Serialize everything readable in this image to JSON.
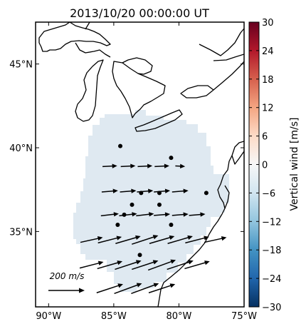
{
  "title": "2013/10/20 00:00:00 UT",
  "lat_ticks": [
    {
      "deg": 45,
      "label": "45°N"
    },
    {
      "deg": 40,
      "label": "40°N"
    },
    {
      "deg": 35,
      "label": "35°N"
    }
  ],
  "lon_ticks": [
    {
      "deg": -90,
      "label": "90°W"
    },
    {
      "deg": -85,
      "label": "85°W"
    },
    {
      "deg": -80,
      "label": "80°W"
    },
    {
      "deg": -75,
      "label": "75°W"
    }
  ],
  "colorbar": {
    "label": "Vertical wind [m/s]",
    "min": -30,
    "max": 30,
    "ticks": [
      30,
      24,
      18,
      12,
      6,
      0,
      -6,
      -12,
      -18,
      -24,
      -30
    ],
    "tick_labels": [
      "30",
      "24",
      "18",
      "12",
      "6",
      "0",
      "−6",
      "−12",
      "−18",
      "−24",
      "−30"
    ]
  },
  "field": {
    "value": -2,
    "color": "#dfe9f1"
  },
  "reference_arrow": {
    "label": "200 m/s",
    "speed": 200
  },
  "chart_data": {
    "type": "map",
    "title": "2013/10/20 00:00:00 UT",
    "lon_range": [
      -91,
      -75
    ],
    "lat_range": [
      30.5,
      47.5
    ],
    "vectors": [
      {
        "lon": -85.3,
        "lat": 38.9,
        "speed": 90
      },
      {
        "lon": -83.9,
        "lat": 38.9,
        "speed": 90
      },
      {
        "lon": -82.6,
        "lat": 38.9,
        "speed": 90
      },
      {
        "lon": -81.3,
        "lat": 38.9,
        "speed": 90
      },
      {
        "lon": -79.9,
        "lat": 38.9,
        "speed": 60
      },
      {
        "lon": -85.3,
        "lat": 37.4,
        "speed": 100
      },
      {
        "lon": -83.9,
        "lat": 37.4,
        "speed": 100
      },
      {
        "lon": -82.6,
        "lat": 37.4,
        "speed": 100
      },
      {
        "lon": -81.3,
        "lat": 37.4,
        "speed": 100
      },
      {
        "lon": -79.9,
        "lat": 37.4,
        "speed": 100
      },
      {
        "lon": -85.3,
        "lat": 36.0,
        "speed": 110
      },
      {
        "lon": -83.9,
        "lat": 36.0,
        "speed": 110
      },
      {
        "lon": -82.6,
        "lat": 36.0,
        "speed": 110
      },
      {
        "lon": -81.3,
        "lat": 36.0,
        "speed": 100
      },
      {
        "lon": -79.9,
        "lat": 36.0,
        "speed": 100
      },
      {
        "lon": -78.6,
        "lat": 36.0,
        "speed": 100
      },
      {
        "lon": -86.7,
        "lat": 34.5,
        "speed": 140
      },
      {
        "lon": -85.3,
        "lat": 34.5,
        "speed": 150
      },
      {
        "lon": -83.9,
        "lat": 34.5,
        "speed": 160
      },
      {
        "lon": -82.6,
        "lat": 34.5,
        "speed": 170
      },
      {
        "lon": -81.3,
        "lat": 34.5,
        "speed": 160
      },
      {
        "lon": -79.9,
        "lat": 34.5,
        "speed": 160
      },
      {
        "lon": -78.6,
        "lat": 34.5,
        "speed": 150
      },
      {
        "lon": -77.2,
        "lat": 34.5,
        "speed": 140
      },
      {
        "lon": -86.7,
        "lat": 33.0,
        "speed": 150
      },
      {
        "lon": -85.3,
        "lat": 33.0,
        "speed": 160
      },
      {
        "lon": -83.9,
        "lat": 33.0,
        "speed": 170
      },
      {
        "lon": -82.6,
        "lat": 33.0,
        "speed": 170
      },
      {
        "lon": -81.3,
        "lat": 33.0,
        "speed": 180
      },
      {
        "lon": -79.9,
        "lat": 33.0,
        "speed": 170
      },
      {
        "lon": -78.6,
        "lat": 33.0,
        "speed": 160
      },
      {
        "lon": -85.3,
        "lat": 31.6,
        "speed": 170
      },
      {
        "lon": -83.9,
        "lat": 31.6,
        "speed": 180
      },
      {
        "lon": -82.6,
        "lat": 31.6,
        "speed": 180
      },
      {
        "lon": -81.3,
        "lat": 31.6,
        "speed": 170
      }
    ],
    "stations": [
      {
        "lon": -84.5,
        "lat": 40.1
      },
      {
        "lon": -80.6,
        "lat": 39.4
      },
      {
        "lon": -82.9,
        "lat": 37.3
      },
      {
        "lon": -81.5,
        "lat": 37.3
      },
      {
        "lon": -77.9,
        "lat": 37.3
      },
      {
        "lon": -83.6,
        "lat": 36.6
      },
      {
        "lon": -81.5,
        "lat": 36.6
      },
      {
        "lon": -84.2,
        "lat": 36.0
      },
      {
        "lon": -84.7,
        "lat": 35.4
      },
      {
        "lon": -80.6,
        "lat": 35.4
      },
      {
        "lon": -83.0,
        "lat": 33.6
      }
    ]
  }
}
